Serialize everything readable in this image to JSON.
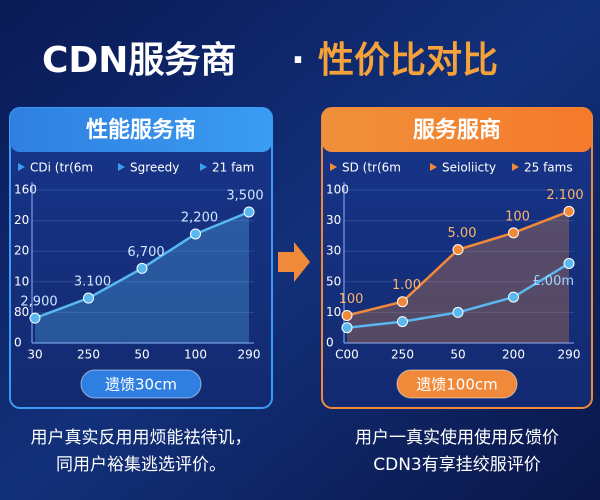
{
  "header": {
    "title_main": "CDN服务商",
    "separator": "·",
    "title_accent": "性价比对比"
  },
  "chart_data": [
    {
      "type": "line",
      "title": "性能服务商",
      "legend": [
        "CDi (tr(6m",
        "Sgreedy",
        "21 fam"
      ],
      "categories": [
        "30",
        "250",
        "50",
        "100",
        "290"
      ],
      "series": [
        {
          "color": "#5ab8f0",
          "values": [
            26,
            47,
            78,
            114,
            137
          ]
        }
      ],
      "annotations": [
        "2,900",
        "3.100",
        "6,700",
        "2,200",
        "3,500"
      ],
      "ylim": [
        0,
        160
      ],
      "yticks": [
        0,
        {
          "value": 32,
          "label": "80"
        },
        {
          "value": 64,
          "label": "10"
        },
        {
          "value": 96,
          "label": "20"
        },
        {
          "value": 128,
          "label": "20"
        },
        160
      ],
      "grid": true,
      "button": "遗馈30cm",
      "caption": [
        "用户真实反用用烦能祛待讥，",
        "同用户裕集逃选评价。"
      ]
    },
    {
      "type": "line",
      "title": "服务服商",
      "legend": [
        "SD (tr(6m",
        "Seioliicty",
        "25 fams"
      ],
      "categories": [
        "C00",
        "250",
        "50",
        "200",
        "290"
      ],
      "series": [
        {
          "color": "#f08a3a",
          "values": [
            18,
            27,
            61,
            72,
            86
          ]
        },
        {
          "color": "#5ab8f0",
          "values": [
            10,
            14,
            20,
            30,
            52
          ]
        }
      ],
      "annotations": [
        "100",
        "1.00",
        "5.00",
        "100",
        "2.100"
      ],
      "end_annotation": "£.00m",
      "ylim": [
        0,
        100
      ],
      "yticks": [
        0,
        {
          "value": 20,
          "label": "10"
        },
        {
          "value": 40,
          "label": "50"
        },
        {
          "value": 60,
          "label": "30"
        },
        {
          "value": 80,
          "label": "30"
        },
        100
      ],
      "grid": true,
      "button": "遗馈100cm",
      "caption": [
        "用户一真实使用使用反馈价",
        "CDN3有享挂绞服评价"
      ]
    }
  ]
}
